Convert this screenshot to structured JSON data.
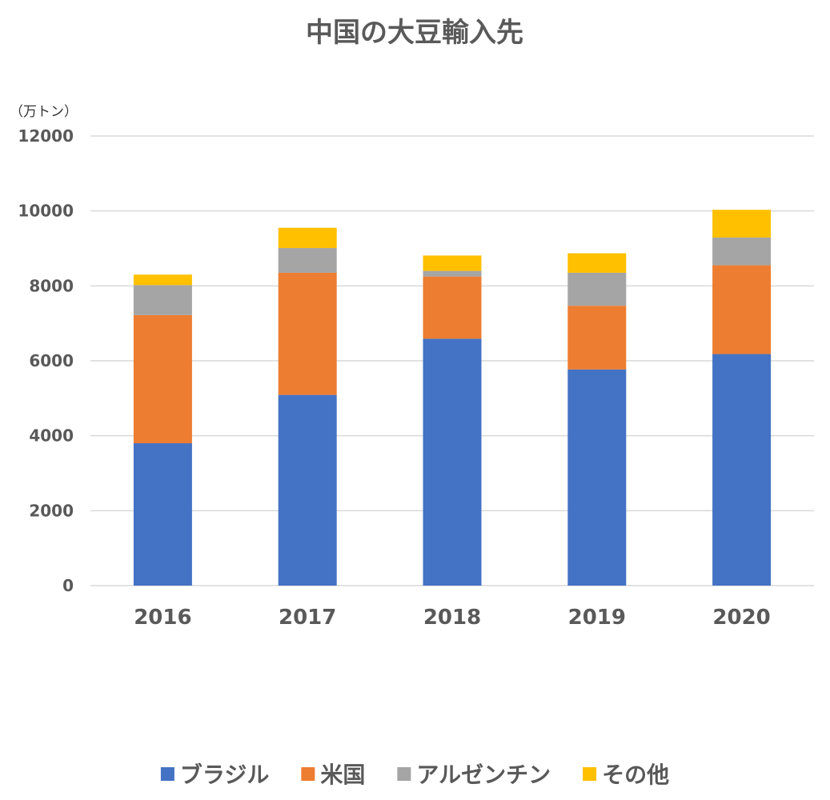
{
  "chart_data": {
    "type": "bar",
    "stacked": true,
    "title": "中国の大豆輸入先",
    "ylabel": "（万トン）",
    "xlabel": "",
    "categories": [
      "2016",
      "2017",
      "2018",
      "2019",
      "2020"
    ],
    "ylim": [
      0,
      12000
    ],
    "yticks": [
      "0",
      "2000",
      "4000",
      "6000",
      "8000",
      "10000",
      "12000"
    ],
    "grid": true,
    "legend_position": "bottom",
    "series": [
      {
        "name": "ブラジル",
        "color": "#4472C4",
        "values": [
          3800,
          5090,
          6590,
          5770,
          6180
        ]
      },
      {
        "name": "米国",
        "color": "#ED7D31",
        "values": [
          3420,
          3260,
          1660,
          1700,
          2370
        ]
      },
      {
        "name": "アルゼンチン",
        "color": "#A5A5A5",
        "values": [
          800,
          660,
          150,
          880,
          740
        ]
      },
      {
        "name": "その他",
        "color": "#FFC000",
        "values": [
          280,
          540,
          410,
          520,
          740
        ]
      }
    ]
  }
}
